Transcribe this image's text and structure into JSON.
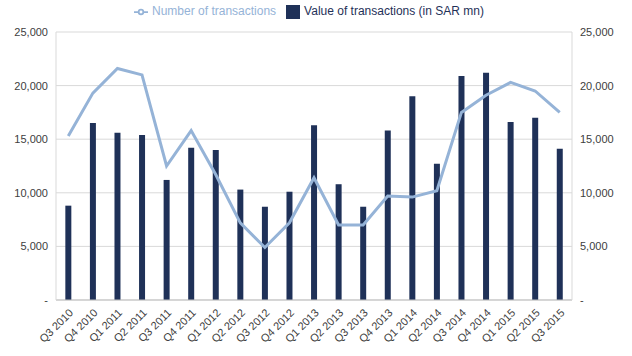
{
  "chart_data": {
    "type": "bar",
    "categories": [
      "Q3 2010",
      "Q4 2010",
      "Q1 2011",
      "Q2 2011",
      "Q3 2011",
      "Q4 2011",
      "Q1 2012",
      "Q2 2012",
      "Q3 2012",
      "Q4 2012",
      "Q1 2013",
      "Q2 2013",
      "Q3 2013",
      "Q4 2013",
      "Q1 2014",
      "Q2 2014",
      "Q3 2014",
      "Q4 2014",
      "Q1 2015",
      "Q2 2015",
      "Q3 2015"
    ],
    "series": [
      {
        "name": "Value of transactions (in SAR mn)",
        "type": "bar",
        "color": "#1f3158",
        "values": [
          8800,
          16500,
          15600,
          15400,
          11200,
          14200,
          14000,
          10300,
          8700,
          10100,
          16300,
          10800,
          8700,
          15800,
          19000,
          12700,
          20900,
          21200,
          16600,
          17000,
          14100
        ]
      },
      {
        "name": "Number of transactions",
        "type": "line",
        "axis": "y2",
        "color": "#95b3d7",
        "values": [
          15300,
          19300,
          21600,
          21000,
          12500,
          15800,
          11700,
          7200,
          4900,
          7200,
          11400,
          7000,
          7000,
          9700,
          9600,
          10200,
          17500,
          19100,
          20300,
          19500,
          17500
        ]
      }
    ],
    "ylim": [
      0,
      25000
    ],
    "yticks": [
      {
        "value": 0,
        "label": "-"
      },
      {
        "value": 5000,
        "label": "5,000"
      },
      {
        "value": 10000,
        "label": "10,000"
      },
      {
        "value": 15000,
        "label": "15,000"
      },
      {
        "value": 20000,
        "label": "20,000"
      },
      {
        "value": 25000,
        "label": "25,000"
      }
    ],
    "y2lim": [
      0,
      25000
    ],
    "y2ticks": [
      {
        "value": 0,
        "label": "-"
      },
      {
        "value": 5000,
        "label": "5,000"
      },
      {
        "value": 10000,
        "label": "10,000"
      },
      {
        "value": 15000,
        "label": "15,000"
      },
      {
        "value": 20000,
        "label": "20,000"
      },
      {
        "value": 25000,
        "label": "25,000"
      }
    ],
    "grid": true,
    "legend": "top"
  }
}
